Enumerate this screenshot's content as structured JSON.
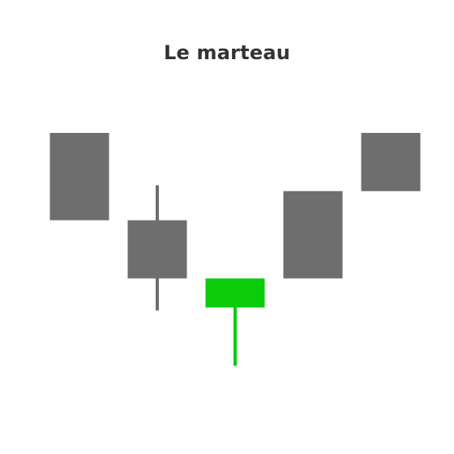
{
  "chart_data": {
    "type": "candlestick",
    "title": "Le marteau",
    "xlabel": "",
    "ylabel": "",
    "grid": false,
    "legend": "none",
    "ylim": [
      0,
      100
    ],
    "candles": [
      {
        "open": 95,
        "close": 65,
        "high": 95,
        "low": 65,
        "color": "#6e6e6e"
      },
      {
        "open": 65,
        "close": 45,
        "high": 77,
        "low": 34,
        "color": "#6e6e6e"
      },
      {
        "open": 35,
        "close": 45,
        "high": 45,
        "low": 15,
        "color": "#0bcc0b"
      },
      {
        "open": 45,
        "close": 75,
        "high": 75,
        "low": 45,
        "color": "#6e6e6e"
      },
      {
        "open": 75,
        "close": 95,
        "high": 95,
        "low": 75,
        "color": "#6e6e6e"
      }
    ]
  }
}
